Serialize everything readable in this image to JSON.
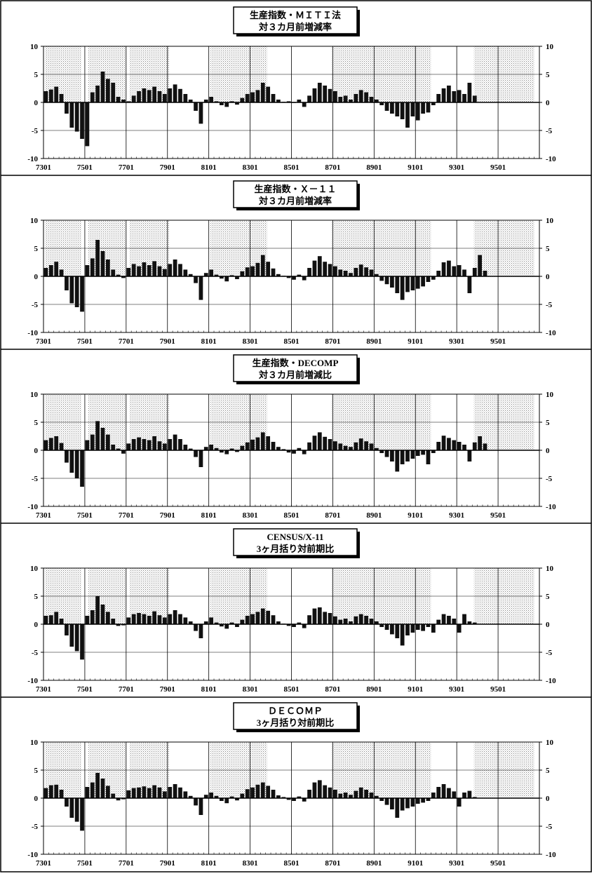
{
  "chart_data": [
    {
      "type": "bar",
      "title": "生産指数・ＭＩＴＩ法",
      "subtitle": "対３カ月前増減率",
      "x_tick_labels": [
        "7301",
        "7501",
        "7701",
        "7901",
        "8101",
        "8301",
        "8501",
        "8701",
        "8901",
        "9101",
        "9301",
        "9501"
      ],
      "ylim": [
        -10,
        10
      ],
      "y_ticks": [
        "10",
        "5",
        "0",
        "-5",
        "-10"
      ],
      "shaded_periods": [
        [
          "7302",
          "7411"
        ],
        [
          "7503",
          "7701"
        ],
        [
          "7703",
          "7902"
        ],
        [
          "8102",
          "8311"
        ],
        [
          "8612",
          "9110"
        ],
        [
          "9311",
          "9610"
        ]
      ],
      "monthly_from": "7301",
      "bin_months": 3,
      "values": [
        2.0,
        2.3,
        2.8,
        1.5,
        -2.0,
        -4.5,
        -5.2,
        -6.5,
        -7.8,
        1.8,
        3.0,
        5.5,
        4.2,
        3.5,
        1.0,
        0.5,
        0.2,
        1.2,
        2.0,
        2.5,
        2.2,
        2.8,
        2.0,
        1.5,
        2.5,
        3.2,
        2.4,
        1.5,
        0.5,
        -1.5,
        -3.8,
        0.5,
        1.0,
        0.2,
        -0.5,
        -0.8,
        0.2,
        -0.4,
        0.8,
        1.5,
        1.8,
        2.2,
        3.5,
        2.8,
        1.5,
        0.5,
        0.1,
        0.2,
        -0.1,
        0.5,
        -0.8,
        1.2,
        2.5,
        3.5,
        3.0,
        2.4,
        2.0,
        1.0,
        1.2,
        0.5,
        1.5,
        2.2,
        1.8,
        1.0,
        0.5,
        -0.5,
        -1.5,
        -2.0,
        -2.5,
        -3.0,
        -4.5,
        -2.5,
        -3.2,
        -2.0,
        -1.8,
        -0.5,
        1.5,
        2.5,
        3.0,
        2.0,
        2.2,
        1.5,
        3.5,
        1.2
      ]
    },
    {
      "type": "bar",
      "title": "生産指数・Ｘ－１１",
      "subtitle": "対３カ月前増減率",
      "x_tick_labels": [
        "7301",
        "7501",
        "7701",
        "7901",
        "8101",
        "8301",
        "8501",
        "8701",
        "8901",
        "9101",
        "9301",
        "9501"
      ],
      "ylim": [
        -10,
        10
      ],
      "y_ticks": [
        "10",
        "5",
        "0",
        "-5",
        "-10"
      ],
      "shaded_periods": [
        [
          "7302",
          "7411"
        ],
        [
          "7503",
          "7701"
        ],
        [
          "7703",
          "7902"
        ],
        [
          "8102",
          "8311"
        ],
        [
          "8612",
          "9110"
        ],
        [
          "9311",
          "9610"
        ]
      ],
      "monthly_from": "7301",
      "bin_months": 3,
      "values": [
        1.5,
        2.0,
        2.6,
        1.2,
        -2.5,
        -4.8,
        -5.5,
        -6.3,
        2.0,
        3.2,
        6.5,
        4.5,
        3.0,
        1.2,
        0.3,
        -0.3,
        1.5,
        2.2,
        1.8,
        2.5,
        2.0,
        2.7,
        1.8,
        1.3,
        2.2,
        3.0,
        2.2,
        1.2,
        0.4,
        -1.2,
        -4.2,
        0.6,
        1.2,
        0.3,
        -0.4,
        -0.9,
        0.2,
        -0.5,
        0.9,
        1.6,
        1.8,
        2.4,
        3.8,
        2.6,
        1.4,
        0.4,
        0.1,
        -0.3,
        -0.6,
        0.3,
        -0.7,
        1.5,
        2.8,
        3.6,
        2.6,
        2.2,
        1.8,
        1.2,
        1.0,
        0.6,
        1.5,
        2.1,
        1.6,
        1.2,
        0.4,
        -0.8,
        -1.4,
        -2.0,
        -3.0,
        -4.2,
        -2.8,
        -2.5,
        -2.2,
        -1.8,
        -1.0,
        -0.6,
        1.0,
        2.5,
        2.8,
        1.8,
        2.0,
        1.2,
        -3.0,
        1.5,
        3.8,
        1.0
      ]
    },
    {
      "type": "bar",
      "title": "生産指数・DECOMP",
      "subtitle": "対３カ月前増減比",
      "x_tick_labels": [
        "7301",
        "7501",
        "7701",
        "7901",
        "8101",
        "8301",
        "8501",
        "8701",
        "8901",
        "9101",
        "9301",
        "9501"
      ],
      "ylim": [
        -10,
        10
      ],
      "y_ticks": [
        "10",
        "5",
        "0",
        "-5",
        "-10"
      ],
      "shaded_periods": [
        [
          "7302",
          "7411"
        ],
        [
          "7503",
          "7701"
        ],
        [
          "7703",
          "7902"
        ],
        [
          "8102",
          "8311"
        ],
        [
          "8612",
          "9110"
        ],
        [
          "9311",
          "9610"
        ]
      ],
      "monthly_from": "7301",
      "bin_months": 3,
      "values": [
        1.8,
        2.2,
        2.5,
        1.3,
        -2.2,
        -4.0,
        -5.0,
        -6.5,
        1.8,
        2.8,
        5.2,
        4.0,
        2.8,
        1.0,
        0.3,
        -0.6,
        1.2,
        2.0,
        2.3,
        2.0,
        1.8,
        2.5,
        1.6,
        1.2,
        2.0,
        2.8,
        2.0,
        1.0,
        0.3,
        -1.2,
        -3.0,
        0.6,
        1.0,
        0.4,
        -0.4,
        -0.7,
        0.3,
        -0.3,
        0.8,
        1.4,
        1.9,
        2.3,
        3.2,
        2.5,
        1.5,
        0.6,
        0.2,
        -0.4,
        -0.6,
        0.4,
        -0.7,
        1.4,
        2.6,
        3.2,
        2.4,
        2.0,
        1.6,
        1.2,
        0.8,
        0.6,
        1.4,
        2.1,
        1.6,
        1.2,
        0.4,
        -0.5,
        -1.2,
        -2.0,
        -3.8,
        -2.5,
        -2.0,
        -1.5,
        -1.0,
        -0.8,
        -2.5,
        -0.5,
        1.5,
        2.6,
        2.2,
        1.8,
        1.5,
        1.0,
        -2.0,
        1.4,
        2.5,
        1.2
      ]
    },
    {
      "type": "bar",
      "title": "CENSUS/X-11",
      "subtitle": "3ヶ月括り対前期比",
      "x_tick_labels": [
        "7301",
        "7501",
        "7701",
        "7901",
        "8101",
        "8301",
        "8501",
        "8701",
        "8901",
        "9101",
        "9301",
        "9501"
      ],
      "ylim": [
        -10,
        10
      ],
      "y_ticks": [
        "10",
        "5",
        "0",
        "-5",
        "-10"
      ],
      "shaded_periods": [
        [
          "7302",
          "7411"
        ],
        [
          "7503",
          "7701"
        ],
        [
          "7703",
          "7902"
        ],
        [
          "8102",
          "8311"
        ],
        [
          "8612",
          "9110"
        ],
        [
          "9311",
          "9610"
        ]
      ],
      "monthly_from": "7301",
      "bin_months": 3,
      "values": [
        1.5,
        1.6,
        2.2,
        1.0,
        -2.0,
        -4.0,
        -4.8,
        -6.3,
        1.5,
        2.5,
        5.0,
        3.5,
        2.2,
        1.0,
        -0.3,
        -0.2,
        1.2,
        1.8,
        2.0,
        1.8,
        1.5,
        2.3,
        1.6,
        1.2,
        1.8,
        2.5,
        1.8,
        1.2,
        0.5,
        -1.2,
        -2.5,
        0.5,
        1.2,
        0.3,
        -0.4,
        -0.8,
        0.3,
        -0.5,
        0.8,
        1.5,
        1.8,
        2.2,
        2.8,
        2.4,
        1.6,
        0.5,
        0.1,
        -0.3,
        -0.5,
        0.3,
        -0.7,
        1.6,
        2.8,
        3.0,
        2.2,
        2.0,
        1.4,
        0.8,
        1.0,
        0.5,
        1.4,
        1.8,
        1.5,
        1.0,
        0.5,
        -0.5,
        -1.0,
        -1.8,
        -2.5,
        -3.8,
        -2.0,
        -1.5,
        -1.0,
        -1.2,
        -0.5,
        -1.5,
        0.8,
        1.8,
        1.5,
        1.0,
        -1.5,
        1.8,
        0.5,
        0.3
      ]
    },
    {
      "type": "bar",
      "title": "ＤＥＣＯＭＰ",
      "subtitle": "3ヶ月括り対前期比",
      "x_tick_labels": [
        "7301",
        "7501",
        "7701",
        "7901",
        "8101",
        "8301",
        "8501",
        "8701",
        "8901",
        "9101",
        "9301",
        "9501"
      ],
      "ylim": [
        -10,
        10
      ],
      "y_ticks": [
        "10",
        "5",
        "0",
        "-5",
        "-10"
      ],
      "shaded_periods": [
        [
          "7302",
          "7411"
        ],
        [
          "7503",
          "7701"
        ],
        [
          "7703",
          "7902"
        ],
        [
          "8102",
          "8311"
        ],
        [
          "8612",
          "9110"
        ],
        [
          "9311",
          "9610"
        ]
      ],
      "monthly_from": "7301",
      "bin_months": 3,
      "values": [
        1.8,
        2.3,
        2.4,
        1.5,
        -1.5,
        -3.5,
        -4.2,
        -5.8,
        2.0,
        2.8,
        4.5,
        3.5,
        2.2,
        0.8,
        -0.4,
        -0.2,
        1.4,
        1.8,
        1.9,
        2.1,
        1.8,
        2.3,
        1.9,
        1.2,
        2.0,
        2.5,
        1.9,
        1.2,
        0.4,
        -1.3,
        -3.0,
        0.6,
        1.0,
        0.4,
        -0.5,
        -0.9,
        0.3,
        -0.4,
        0.8,
        1.6,
        1.9,
        2.4,
        2.8,
        2.2,
        1.5,
        0.5,
        0.2,
        -0.3,
        -0.5,
        0.3,
        -0.6,
        1.5,
        2.8,
        3.2,
        2.3,
        1.9,
        1.5,
        0.8,
        1.0,
        0.6,
        1.3,
        1.9,
        1.5,
        1.0,
        0.4,
        -0.5,
        -1.2,
        -2.0,
        -3.5,
        -2.2,
        -1.8,
        -1.5,
        -1.0,
        -0.8,
        -0.5,
        1.0,
        2.0,
        2.5,
        1.8,
        1.2,
        -1.5,
        1.0,
        1.3,
        0.2
      ]
    }
  ]
}
